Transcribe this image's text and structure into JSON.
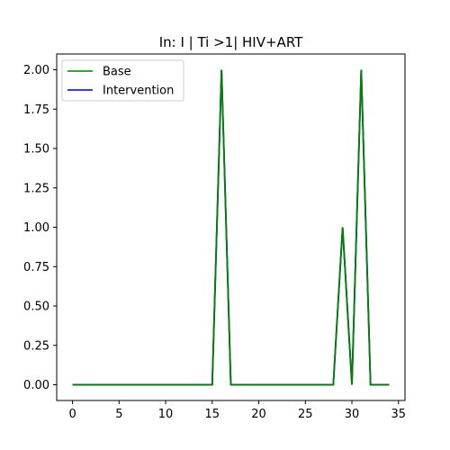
{
  "chart_data": {
    "type": "line",
    "title": "In: I | Ti >1| HIV+ART",
    "xlabel": "",
    "ylabel": "",
    "xlim": [
      -1.7,
      35.7
    ],
    "ylim": [
      -0.1,
      2.1
    ],
    "xticks": [
      0,
      5,
      10,
      15,
      20,
      25,
      30,
      35
    ],
    "xtick_labels": [
      "0",
      "5",
      "10",
      "15",
      "20",
      "25",
      "30",
      "35"
    ],
    "yticks": [
      0,
      0.25,
      0.5,
      0.75,
      1.0,
      1.25,
      1.5,
      1.75,
      2.0
    ],
    "ytick_labels": [
      "0.00",
      "0.25",
      "0.50",
      "0.75",
      "1.00",
      "1.25",
      "1.50",
      "1.75",
      "2.00"
    ],
    "grid": false,
    "legend_position": "top-left",
    "x": [
      0,
      1,
      2,
      3,
      4,
      5,
      6,
      7,
      8,
      9,
      10,
      11,
      12,
      13,
      14,
      15,
      16,
      17,
      18,
      19,
      20,
      21,
      22,
      23,
      24,
      25,
      26,
      27,
      28,
      29,
      30,
      31,
      32,
      33,
      34
    ],
    "series": [
      {
        "name": "Intervention",
        "color": "#0000cc",
        "values": [
          0,
          0,
          0,
          0,
          0,
          0,
          0,
          0,
          0,
          0,
          0,
          0,
          0,
          0,
          0,
          0,
          2,
          0,
          0,
          0,
          0,
          0,
          0,
          0,
          0,
          0,
          0,
          0,
          0,
          1,
          0,
          2,
          0,
          0,
          0
        ]
      },
      {
        "name": "Base",
        "color": "#008000",
        "values": [
          0,
          0,
          0,
          0,
          0,
          0,
          0,
          0,
          0,
          0,
          0,
          0,
          0,
          0,
          0,
          0,
          2,
          0,
          0,
          0,
          0,
          0,
          0,
          0,
          0,
          0,
          0,
          0,
          0,
          1,
          0,
          2,
          0,
          0,
          0
        ]
      }
    ],
    "legend_entries": [
      {
        "name": "Base",
        "color": "#008000"
      },
      {
        "name": "Intervention",
        "color": "#0000cc"
      }
    ]
  }
}
